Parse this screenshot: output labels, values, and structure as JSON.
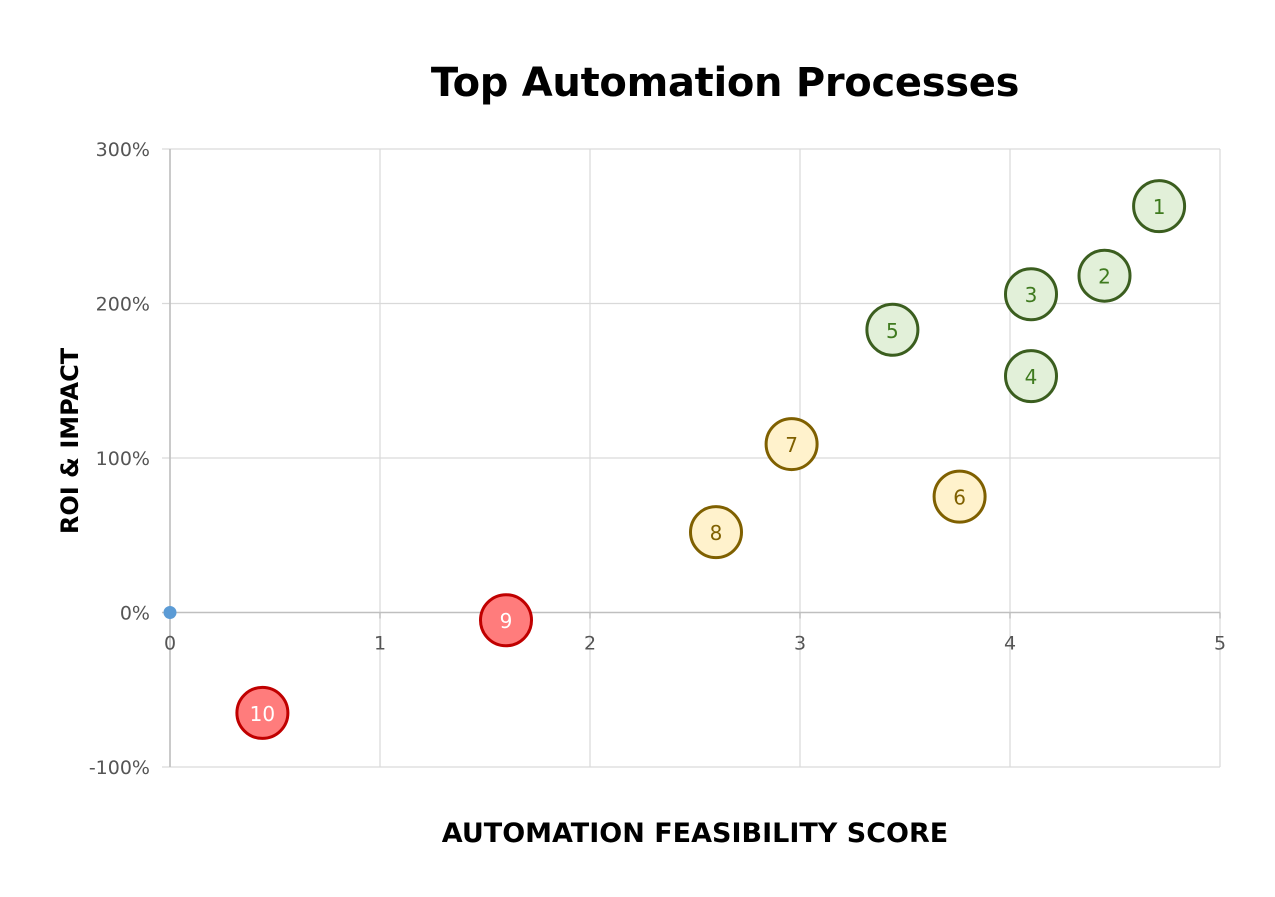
{
  "chart_data": {
    "type": "scatter",
    "title": "Top Automation Processes",
    "xlabel": "AUTOMATION FEASIBILITY SCORE",
    "ylabel": "ROI & IMPACT",
    "xlim": [
      0,
      5
    ],
    "ylim": [
      -100,
      300
    ],
    "x_ticks": [
      "0",
      "1",
      "2",
      "3",
      "4",
      "5"
    ],
    "y_ticks": [
      "300%",
      "200%",
      "100%",
      "0%",
      "-100%"
    ],
    "grid": true,
    "legend": "none",
    "origin_marker": {
      "x": 0,
      "y": 0,
      "color": "#5b9bd5"
    },
    "points": [
      {
        "label": "1",
        "x": 4.71,
        "y": 263,
        "category": "high"
      },
      {
        "label": "2",
        "x": 4.45,
        "y": 218,
        "category": "high"
      },
      {
        "label": "3",
        "x": 4.1,
        "y": 206,
        "category": "high"
      },
      {
        "label": "4",
        "x": 4.1,
        "y": 153,
        "category": "high"
      },
      {
        "label": "5",
        "x": 3.44,
        "y": 183,
        "category": "high"
      },
      {
        "label": "6",
        "x": 3.76,
        "y": 75,
        "category": "medium"
      },
      {
        "label": "7",
        "x": 2.96,
        "y": 109,
        "category": "medium"
      },
      {
        "label": "8",
        "x": 2.6,
        "y": 52,
        "category": "medium"
      },
      {
        "label": "9",
        "x": 1.6,
        "y": -5,
        "category": "low"
      },
      {
        "label": "10",
        "x": 0.44,
        "y": -65,
        "category": "low"
      }
    ],
    "colors": {
      "high": {
        "fill": "#e2f0d9",
        "stroke": "#3b5e1f",
        "text": "#3f7a1f"
      },
      "medium": {
        "fill": "#fff2cc",
        "stroke": "#7f6000",
        "text": "#7f6000"
      },
      "low": {
        "fill": "#ff7c7c",
        "stroke": "#c00000",
        "text": "#ffffff"
      }
    }
  }
}
